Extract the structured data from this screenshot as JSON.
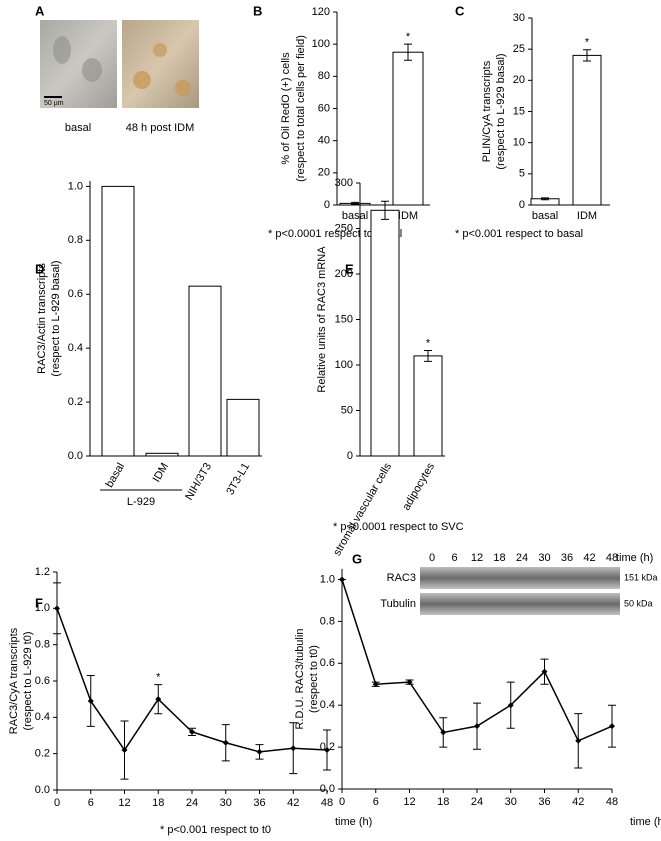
{
  "panel_a": {
    "label": "A",
    "scale_bar": "50 µm",
    "images": [
      "basal",
      "48 h post IDM"
    ]
  },
  "chart_data": [
    {
      "type": "bar",
      "label": "B",
      "ylabel": [
        "% of Oil RedO (+) cells",
        "(respect to total cells per field)"
      ],
      "categories": [
        "basal",
        "IDM"
      ],
      "values": [
        1,
        95
      ],
      "errors": [
        0.6,
        5
      ],
      "color": "#ffffff",
      "ylim": [
        0,
        120
      ],
      "yticks": [
        0,
        20,
        40,
        60,
        80,
        100,
        120
      ],
      "annotations": [
        "*"
      ],
      "footnote": "*  p<0.0001 respect to basal"
    },
    {
      "type": "bar",
      "label": "C",
      "ylabel": [
        "PLIN/CyA transcripts",
        "(respect to L-929  basal)"
      ],
      "categories": [
        "basal",
        "IDM"
      ],
      "values": [
        1,
        24
      ],
      "errors": [
        0.15,
        0.9
      ],
      "color": "#ffffff",
      "ylim": [
        0,
        30
      ],
      "yticks": [
        0,
        5,
        10,
        15,
        20,
        25,
        30
      ],
      "annotations": [
        "*"
      ],
      "footnote": "*  p<0.001 respect to basal"
    },
    {
      "type": "bar",
      "label": "D",
      "ylabel": [
        "RAC3/Actin transcripts",
        "(respect to L-929 basal)"
      ],
      "categories": [
        "basal",
        "IDM",
        "NIH/3T3",
        "3T3-L1"
      ],
      "values": [
        1.0,
        0.01,
        0.63,
        0.21
      ],
      "color": "#ffffff",
      "ylim": [
        0,
        1.02
      ],
      "yticks": [
        {
          "value": 0,
          "label": "0.0"
        },
        0.2,
        0.4,
        0.6,
        0.8,
        {
          "value": 1,
          "label": "1.0"
        }
      ],
      "group_label": "L-929"
    },
    {
      "type": "bar",
      "label": "E",
      "ylabel": [
        "Relative units of RAC3 mRNA"
      ],
      "categories": [
        "stromal vascular cells",
        "adipocytes"
      ],
      "values": [
        270,
        110
      ],
      "errors": [
        10,
        6
      ],
      "color": "#ffffff",
      "ylim": [
        0,
        300
      ],
      "yticks": [
        0,
        50,
        100,
        150,
        200,
        250,
        300
      ],
      "annotations": [
        "*"
      ],
      "footnote": "*  p<0.0001 respect to SVC"
    },
    {
      "type": "line",
      "label": "F",
      "ylabel": [
        "RAC3/CyA transcripts",
        "(respect to L-929 t0)"
      ],
      "xlabel": "time (h)",
      "x": [
        0,
        6,
        12,
        18,
        24,
        30,
        36,
        42,
        48
      ],
      "values": [
        1.0,
        0.49,
        0.22,
        0.5,
        0.32,
        0.26,
        0.21,
        0.23,
        0.22
      ],
      "errors": [
        0.14,
        0.14,
        0.16,
        0.08,
        0.02,
        0.1,
        0.04,
        0.14,
        0.11
      ],
      "color": "#000000",
      "xlim": [
        0,
        48
      ],
      "xticks": [
        0,
        6,
        12,
        18,
        24,
        30,
        36,
        42,
        48
      ],
      "ylim": [
        0,
        1.2
      ],
      "yticks": [
        {
          "value": 0,
          "label": "0.0"
        },
        0.2,
        0.4,
        0.6,
        0.8,
        {
          "value": 1,
          "label": "1.0"
        },
        1.2
      ],
      "annotations": [
        "*"
      ],
      "footnote": "* p<0.001 respect to t0"
    },
    {
      "type": "line",
      "label": "G",
      "ylabel": [
        "R.D.U. RAC3/tubulin",
        "(respect to t0)"
      ],
      "xlabel": "time (h)",
      "x": [
        0,
        6,
        12,
        18,
        24,
        30,
        36,
        42,
        48
      ],
      "values": [
        1.0,
        0.5,
        0.51,
        0.27,
        0.3,
        0.4,
        0.56,
        0.23,
        0.3
      ],
      "errors": [
        0,
        0.01,
        0.01,
        0.07,
        0.11,
        0.11,
        0.06,
        0.13,
        0.1
      ],
      "color": "#000000",
      "xlim": [
        0,
        48
      ],
      "xticks": [
        0,
        6,
        12,
        18,
        24,
        30,
        36,
        42,
        48
      ],
      "ylim": [
        0,
        1.05
      ],
      "yticks": [
        {
          "value": 0,
          "label": "0.0"
        },
        0.2,
        0.4,
        0.6,
        0.8,
        {
          "value": 1,
          "label": "1.0"
        }
      ],
      "blot_rows": [
        {
          "name": "RAC3",
          "size": "151 kDa"
        },
        {
          "name": "Tubulin",
          "size": "50 kDa"
        }
      ]
    }
  ]
}
